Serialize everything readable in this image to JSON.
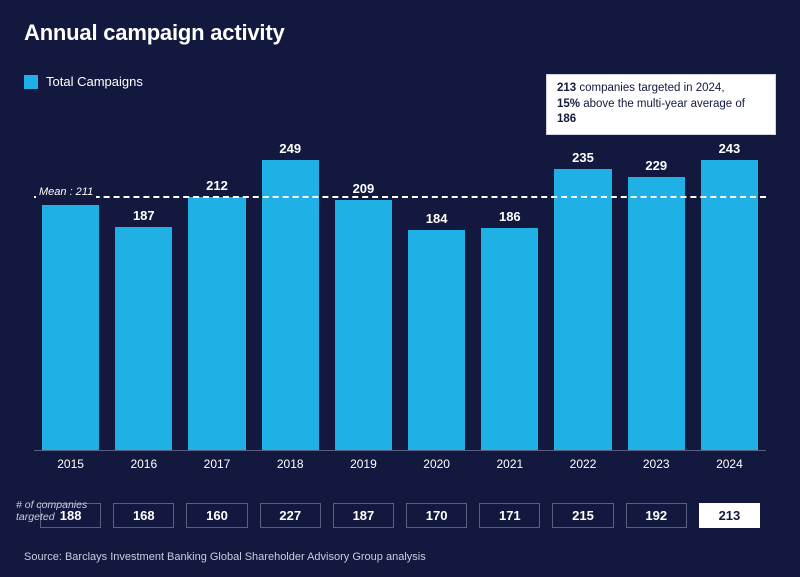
{
  "title": "Annual campaign activity",
  "legend_label": "Total Campaigns",
  "bar_color": "#1fb0e6",
  "background_color": "#13193e",
  "text_color": "#ffffff",
  "annotation": {
    "targeted_count": "213",
    "line1_suffix": " companies targeted in 2024,",
    "percent": "15%",
    "line2_mid": " above the multi-year average of ",
    "avg": "186"
  },
  "mean": {
    "label": "Mean : 211",
    "value": 211
  },
  "ylim": [
    0,
    260
  ],
  "years": [
    "2015",
    "2016",
    "2017",
    "2018",
    "2019",
    "2020",
    "2021",
    "2022",
    "2023",
    "2024"
  ],
  "values": [
    205,
    187,
    212,
    249,
    209,
    184,
    186,
    235,
    229,
    243
  ],
  "companies_targeted_label": "# of companies targeted",
  "companies_targeted": [
    "188",
    "168",
    "160",
    "227",
    "187",
    "170",
    "171",
    "215",
    "192",
    "213"
  ],
  "highlight_index": 9,
  "source": "Source: Barclays Investment Banking Global Shareholder Advisory Group analysis"
}
